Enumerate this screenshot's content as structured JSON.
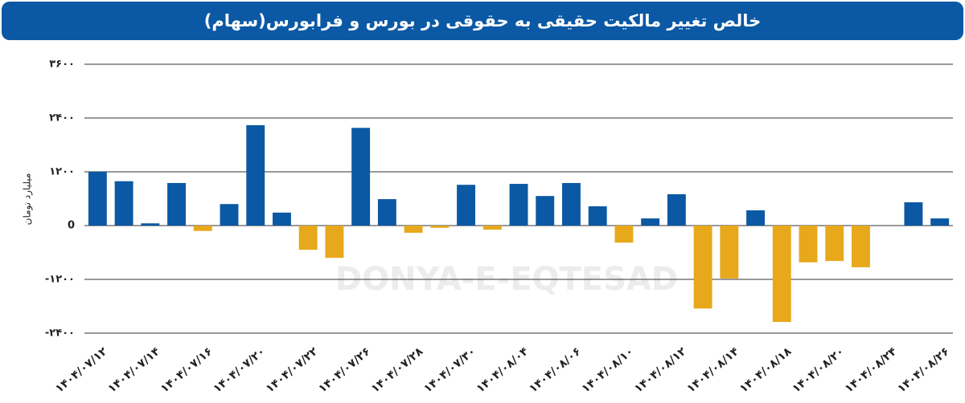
{
  "chart_data": {
    "type": "bar",
    "title": "خالص تغییر مالکیت حقیقی به حقوقی در بورس و فرابورس(سهام)",
    "y_label": "میلیارد تومان",
    "watermark": "DONYA-E-EQTESAD",
    "categories": [
      "۱۴۰۴/۰۷/۱۲",
      null,
      "۱۴۰۴/۰۷/۱۴",
      null,
      "۱۴۰۴/۰۷/۱۶",
      null,
      "۱۴۰۴/۰۷/۲۰",
      null,
      "۱۴۰۴/۰۷/۲۲",
      null,
      "۱۴۰۴/۰۷/۲۶",
      null,
      "۱۴۰۴/۰۷/۲۸",
      null,
      "۱۴۰۴/۰۷/۳۰",
      null,
      "۱۴۰۴/۰۸/۰۴",
      null,
      "۱۴۰۴/۰۸/۰۶",
      null,
      "۱۴۰۴/۰۸/۱۰",
      null,
      "۱۴۰۴/۰۸/۱۲",
      null,
      "۱۴۰۴/۰۸/۱۴",
      null,
      "۱۴۰۴/۰۸/۱۸",
      null,
      "۱۴۰۴/۰۸/۲۰",
      null,
      "۱۴۰۴/۰۸/۲۴",
      null,
      "۱۴۰۴/۰۸/۲۶"
    ],
    "values": [
      1200,
      990,
      50,
      950,
      -120,
      480,
      2240,
      290,
      -540,
      -720,
      2180,
      590,
      -160,
      -50,
      910,
      -90,
      930,
      660,
      950,
      430,
      -380,
      160,
      700,
      -1850,
      -1180,
      340,
      -2150,
      -820,
      -790,
      -930,
      null,
      520,
      160
    ],
    "positive_color": "#0b59a4",
    "negative_color": "#e8a81c",
    "ylim": [
      -2400,
      3600
    ],
    "yticks": [
      {
        "value": -2400,
        "label": "-۲۴۰۰"
      },
      {
        "value": -1200,
        "label": "-۱۲۰۰"
      },
      0,
      {
        "value": 1200,
        "label": "۱۲۰۰"
      },
      {
        "value": 2400,
        "label": "۲۴۰۰"
      },
      {
        "value": 3600,
        "label": "۳۶۰۰"
      }
    ],
    "grid": true
  }
}
